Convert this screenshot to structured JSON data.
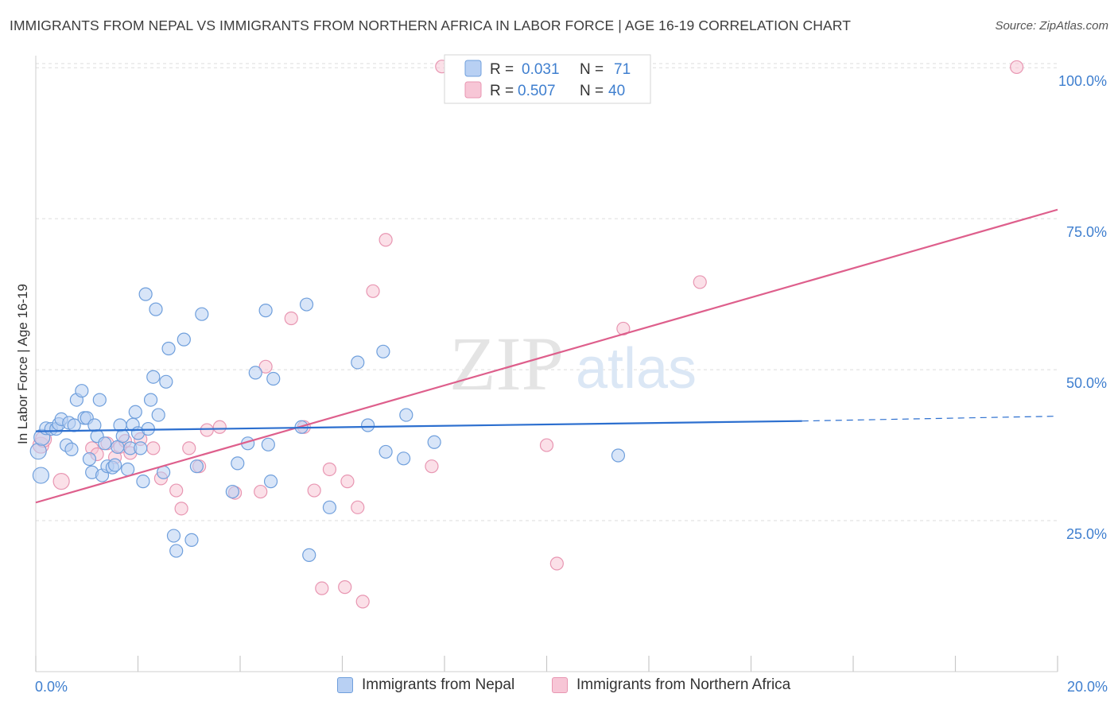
{
  "title": "IMMIGRANTS FROM NEPAL VS IMMIGRANTS FROM NORTHERN AFRICA IN LABOR FORCE | AGE 16-19 CORRELATION CHART",
  "source": "Source: ZipAtlas.com",
  "watermark": {
    "zip": "ZIP",
    "atlas": "atlas"
  },
  "colors": {
    "nepal_fill": "#b8d0f3",
    "nepal_stroke": "#6f9fdc",
    "nepal_line": "#2c6fcf",
    "africa_fill": "#f7c6d6",
    "africa_stroke": "#e896b2",
    "africa_line": "#de5f8c",
    "axis_text": "#3f7fcf",
    "grid": "#dddddd"
  },
  "legend": {
    "rows": [
      {
        "r_label": "R =",
        "r_value": "0.031",
        "n_label": "N =",
        "n_value": "71"
      },
      {
        "r_label": "R =",
        "r_value": "0.507",
        "n_label": "N =",
        "n_value": "40"
      }
    ]
  },
  "chart_data": {
    "type": "scatter",
    "title": "IMMIGRANTS FROM NEPAL VS IMMIGRANTS FROM NORTHERN AFRICA IN LABOR FORCE | AGE 16-19 CORRELATION CHART",
    "xlabel": "",
    "ylabel": "In Labor Force | Age 16-19",
    "xlim": [
      0,
      20
    ],
    "ylim": [
      0,
      102
    ],
    "x_tick_labels": [
      "0.0%",
      "20.0%"
    ],
    "y_ticks": [
      25,
      50,
      75,
      100
    ],
    "y_tick_labels": [
      "25.0%",
      "50.0%",
      "75.0%",
      "100.0%"
    ],
    "grid": true,
    "series": [
      {
        "name": "Immigrants from Nepal",
        "r": 0.031,
        "n": 71,
        "trend": {
          "x0": 0,
          "y0": 39.8,
          "x1": 15.0,
          "y1": 41.5,
          "dash_to_x": 20.0,
          "dash_to_y": 42.3
        },
        "points": [
          [
            0.05,
            36.5
          ],
          [
            0.1,
            32.5
          ],
          [
            0.12,
            38.8
          ],
          [
            0.2,
            40.3
          ],
          [
            0.3,
            40.2
          ],
          [
            0.4,
            40.2
          ],
          [
            0.45,
            41.0
          ],
          [
            0.5,
            41.8
          ],
          [
            0.6,
            37.5
          ],
          [
            0.65,
            41.2
          ],
          [
            0.7,
            36.8
          ],
          [
            0.75,
            40.8
          ],
          [
            0.8,
            45.0
          ],
          [
            0.9,
            46.5
          ],
          [
            0.95,
            42.0
          ],
          [
            1.0,
            42.0
          ],
          [
            1.05,
            35.2
          ],
          [
            1.1,
            33.0
          ],
          [
            1.15,
            40.8
          ],
          [
            1.2,
            39.0
          ],
          [
            1.25,
            45.0
          ],
          [
            1.3,
            32.5
          ],
          [
            1.35,
            37.8
          ],
          [
            1.4,
            34.0
          ],
          [
            1.5,
            33.8
          ],
          [
            1.55,
            34.2
          ],
          [
            1.6,
            37.2
          ],
          [
            1.65,
            40.8
          ],
          [
            1.7,
            39.0
          ],
          [
            1.8,
            33.5
          ],
          [
            1.85,
            37.0
          ],
          [
            1.9,
            40.9
          ],
          [
            1.95,
            43.0
          ],
          [
            2.0,
            39.5
          ],
          [
            2.05,
            37.0
          ],
          [
            2.1,
            31.5
          ],
          [
            2.15,
            62.5
          ],
          [
            2.2,
            40.2
          ],
          [
            2.25,
            45.0
          ],
          [
            2.3,
            48.8
          ],
          [
            2.35,
            60.0
          ],
          [
            2.4,
            42.5
          ],
          [
            2.5,
            33.0
          ],
          [
            2.55,
            48.0
          ],
          [
            2.6,
            53.5
          ],
          [
            2.7,
            22.5
          ],
          [
            2.75,
            20.0
          ],
          [
            2.9,
            55.0
          ],
          [
            3.05,
            21.8
          ],
          [
            3.15,
            34.0
          ],
          [
            3.25,
            59.2
          ],
          [
            3.85,
            29.8
          ],
          [
            3.95,
            34.5
          ],
          [
            4.15,
            37.8
          ],
          [
            4.3,
            49.5
          ],
          [
            4.5,
            59.8
          ],
          [
            4.55,
            37.6
          ],
          [
            4.6,
            31.5
          ],
          [
            4.65,
            48.5
          ],
          [
            5.2,
            40.5
          ],
          [
            5.3,
            60.8
          ],
          [
            5.35,
            19.3
          ],
          [
            5.75,
            27.2
          ],
          [
            6.3,
            51.2
          ],
          [
            6.5,
            40.8
          ],
          [
            6.8,
            53.0
          ],
          [
            6.85,
            36.4
          ],
          [
            7.2,
            35.3
          ],
          [
            7.25,
            42.5
          ],
          [
            7.8,
            38.0
          ],
          [
            11.4,
            35.8
          ]
        ]
      },
      {
        "name": "Immigrants from Northern Africa",
        "r": 0.507,
        "n": 40,
        "trend": {
          "x0": 0,
          "y0": 28.0,
          "x1": 20.0,
          "y1": 76.5
        },
        "points": [
          [
            0.1,
            37.5
          ],
          [
            0.15,
            38.5
          ],
          [
            0.5,
            31.5
          ],
          [
            1.1,
            37.0
          ],
          [
            1.2,
            36.0
          ],
          [
            1.4,
            37.8
          ],
          [
            1.55,
            35.5
          ],
          [
            1.65,
            37.2
          ],
          [
            1.75,
            38.2
          ],
          [
            1.85,
            36.2
          ],
          [
            2.05,
            38.5
          ],
          [
            2.3,
            37.0
          ],
          [
            2.45,
            32.0
          ],
          [
            2.75,
            30.0
          ],
          [
            2.85,
            27.0
          ],
          [
            3.0,
            37.0
          ],
          [
            3.2,
            34.0
          ],
          [
            3.35,
            40.0
          ],
          [
            3.6,
            40.5
          ],
          [
            3.9,
            29.6
          ],
          [
            4.4,
            29.8
          ],
          [
            4.5,
            50.5
          ],
          [
            5.0,
            58.5
          ],
          [
            5.25,
            40.5
          ],
          [
            5.45,
            30.0
          ],
          [
            5.6,
            13.8
          ],
          [
            5.75,
            33.5
          ],
          [
            6.05,
            14.0
          ],
          [
            6.1,
            31.5
          ],
          [
            6.3,
            27.2
          ],
          [
            6.4,
            11.6
          ],
          [
            6.6,
            63.0
          ],
          [
            6.85,
            71.5
          ],
          [
            7.75,
            34.0
          ],
          [
            7.95,
            100.2
          ],
          [
            10.0,
            37.5
          ],
          [
            10.2,
            17.9
          ],
          [
            11.5,
            56.8
          ],
          [
            13.0,
            64.5
          ],
          [
            19.2,
            100.1
          ]
        ]
      }
    ]
  }
}
